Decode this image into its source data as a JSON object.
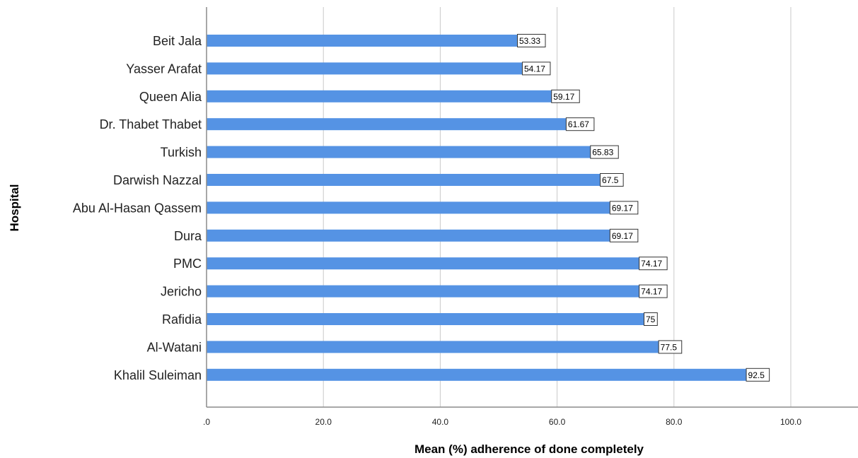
{
  "chart_data": {
    "type": "bar",
    "orientation": "horizontal",
    "categories": [
      "Beit Jala",
      "Yasser Arafat",
      "Queen Alia",
      "Dr. Thabet Thabet",
      "Turkish",
      "Darwish Nazzal",
      "Abu Al-Hasan Qassem",
      "Dura",
      "PMC",
      "Jericho",
      "Rafidia",
      "Al-Watani",
      "Khalil Suleiman"
    ],
    "values": [
      53.33,
      54.17,
      59.17,
      61.67,
      65.83,
      67.5,
      69.17,
      69.17,
      74.17,
      74.17,
      75,
      77.5,
      92.5
    ],
    "data_labels": [
      "53.33",
      "54.17",
      "59.17",
      "61.67",
      "65.83",
      "67.5",
      "69.17",
      "69.17",
      "74.17",
      "74.17",
      "75",
      "77.5",
      "92.5"
    ],
    "x_ticks": [
      0,
      20,
      40,
      60,
      80,
      100
    ],
    "x_tick_labels": [
      ".0",
      "20.0",
      "40.0",
      "60.0",
      "80.0",
      "100.0"
    ],
    "xlim": [
      0,
      111.5
    ],
    "xlabel": "Mean (%) adherence of done completely",
    "ylabel": "Hospital",
    "title": "",
    "grid": "vertical",
    "legend": "none",
    "bar_color": "#5593e4",
    "grid_color": "#c9c9c9",
    "axis_color": "#8c8c8c"
  }
}
